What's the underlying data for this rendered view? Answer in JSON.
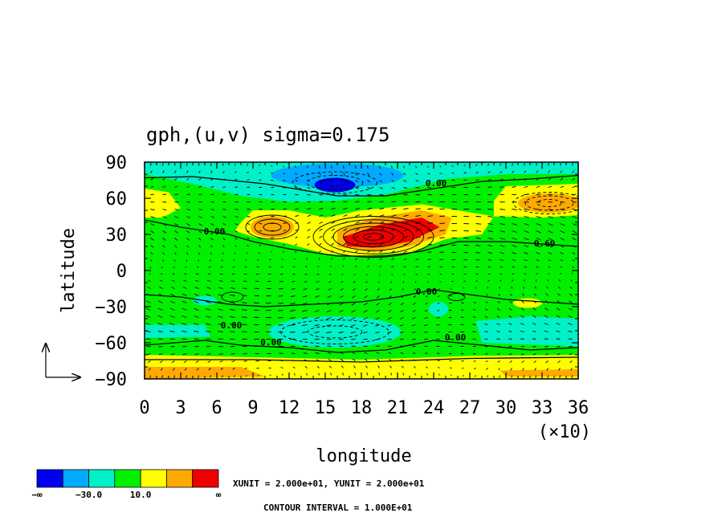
{
  "chart_data": {
    "type": "heatmap",
    "title": "gph,(u,v) sigma=0.175",
    "xlabel": "longitude",
    "ylabel": "latitude",
    "x_multiplier_label": "(×10)",
    "xlim": [
      0,
      36
    ],
    "ylim": [
      -90,
      90
    ],
    "x_ticks": [
      0,
      3,
      6,
      9,
      12,
      15,
      18,
      21,
      24,
      27,
      30,
      33,
      36
    ],
    "y_ticks": [
      90,
      60,
      30,
      0,
      -30,
      -60,
      -90
    ],
    "x_tick_labels": [
      "0",
      "3",
      "6",
      "9",
      "12",
      "15",
      "18",
      "21",
      "24",
      "27",
      "30",
      "33",
      "36"
    ],
    "y_tick_labels": [
      "90",
      "60",
      "30",
      "0",
      "−30",
      "−60",
      "−90"
    ],
    "contour_labels": [
      {
        "text": "0.00",
        "x": 5.8,
        "y": 30
      },
      {
        "text": "0.00",
        "x": 24.2,
        "y": 70
      },
      {
        "text": "0.60",
        "x": 33.2,
        "y": 20
      },
      {
        "text": "0.00",
        "x": 23.4,
        "y": -20
      },
      {
        "text": "0.00",
        "x": 7.2,
        "y": -48
      },
      {
        "text": "0.00",
        "x": 10.5,
        "y": -62
      },
      {
        "text": "0.00",
        "x": 25.8,
        "y": -58
      }
    ],
    "colorbar": {
      "colors": [
        "#0000f0",
        "#00aaff",
        "#00f0c8",
        "#00f000",
        "#ffff00",
        "#ffaa00",
        "#f00000"
      ],
      "labels": [
        "−∞",
        "−30.0",
        "10.0",
        "∞"
      ]
    },
    "units_note": "XUNIT = 2.000e+01, YUNIT = 2.000e+01",
    "contour_interval_note": "CONTOUR INTERVAL = 1.000E+01"
  },
  "palette": {
    "background": "#00f000",
    "deep_low": "#0000f0",
    "low": "#00aaff",
    "mid_low": "#00f0c8",
    "high": "#ffff00",
    "higher": "#ffaa00",
    "highest": "#f00000"
  }
}
